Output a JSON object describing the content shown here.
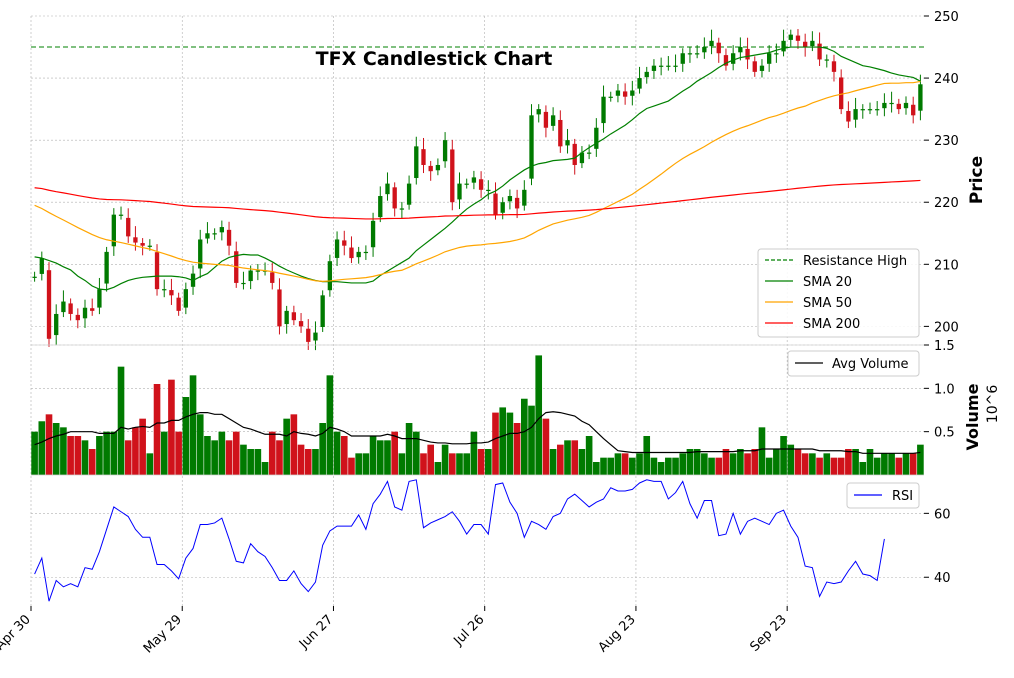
{
  "chart_data": {
    "type": "candlestick",
    "title": "TFX Candlestick Chart",
    "x_tick_labels": [
      "Apr 30",
      "May 29",
      "Jun 27",
      "Jul 26",
      "Aug 23",
      "Sep 23"
    ],
    "x_tick_indices": [
      0,
      21,
      42,
      63,
      84,
      105
    ],
    "panels": {
      "price": {
        "ylabel": "Price",
        "ylim": [
          197,
          250
        ],
        "yticks": [
          200,
          210,
          220,
          230,
          240,
          250
        ],
        "resistance_high": 245,
        "legend": [
          {
            "key": "resistance",
            "label": "Resistance High",
            "color": "#008000",
            "dash": true
          },
          {
            "key": "sma20",
            "label": "SMA 20",
            "color": "#008000"
          },
          {
            "key": "sma50",
            "label": "SMA 50",
            "color": "#ffa500"
          },
          {
            "key": "sma200",
            "label": "SMA 200",
            "color": "#ff0000"
          }
        ]
      },
      "volume": {
        "ylabel": "Volume",
        "scale_label": "10^6",
        "ylim": [
          0,
          1.5
        ],
        "yticks": [
          0.5,
          1.0,
          1.5
        ],
        "ytick_labels": [
          "0.5",
          "1.0",
          "1.5"
        ],
        "legend": [
          {
            "key": "avgvol",
            "label": "Avg Volume",
            "color": "#000000"
          }
        ]
      },
      "rsi": {
        "ylim": [
          31,
          72
        ],
        "yticks": [
          40,
          60
        ],
        "legend": [
          {
            "key": "rsi",
            "label": "RSI",
            "color": "#0000ff"
          }
        ]
      }
    },
    "colors": {
      "up": "#007a00",
      "down": "#d0121b",
      "grid": "#b0b0b0"
    },
    "close": [
      208.0,
      211.0,
      198.0,
      202.0,
      204.0,
      202.0,
      201.0,
      203.0,
      202.5,
      206.0,
      212.0,
      218.0,
      218.0,
      214.5,
      213.5,
      213.0,
      213.0,
      206.0,
      206.0,
      205.0,
      202.5,
      206.0,
      208.5,
      214.0,
      215.0,
      215.0,
      216.0,
      213.0,
      207.0,
      207.0,
      209.0,
      209.0,
      209.0,
      207.0,
      200.0,
      202.5,
      201.0,
      200.0,
      197.5,
      199.0,
      205.0,
      210.5,
      214.0,
      213.0,
      211.0,
      212.0,
      212.0,
      217.0,
      221.0,
      223.0,
      219.0,
      219.0,
      223.0,
      229.0,
      226.0,
      225.0,
      226.0,
      230.0,
      220.0,
      223.0,
      223.0,
      224.0,
      222.0,
      222.0,
      218.0,
      220.0,
      221.0,
      219.0,
      222.0,
      234.0,
      235.0,
      232.0,
      234.0,
      229.0,
      230.0,
      226.0,
      228.0,
      228.0,
      232.0,
      237.0,
      237.0,
      238.0,
      237.0,
      238.0,
      240.0,
      241.0,
      242.0,
      242.0,
      242.0,
      242.0,
      244.0,
      244.0,
      244.0,
      245.0,
      246.0,
      244.0,
      242.0,
      244.0,
      245.0,
      243.0,
      241.0,
      242.0,
      244.0,
      244.0,
      246.0,
      247.0,
      246.0,
      245.0,
      246.0,
      243.0,
      243.0,
      241.0,
      235.0,
      233.0,
      235.0,
      235.0,
      235.0,
      235.0,
      236.0,
      236.0,
      235.0,
      236.0,
      234.0,
      239.0
    ],
    "volume": [
      0.5,
      0.62,
      0.7,
      0.6,
      0.55,
      0.45,
      0.45,
      0.4,
      0.3,
      0.45,
      0.5,
      0.5,
      1.25,
      0.4,
      0.55,
      0.65,
      0.25,
      1.05,
      0.5,
      1.1,
      0.5,
      0.9,
      1.15,
      0.7,
      0.45,
      0.4,
      0.5,
      0.4,
      0.5,
      0.35,
      0.3,
      0.3,
      0.15,
      0.5,
      0.4,
      0.65,
      0.7,
      0.35,
      0.3,
      0.3,
      0.6,
      1.15,
      0.5,
      0.45,
      0.2,
      0.25,
      0.25,
      0.45,
      0.4,
      0.4,
      0.5,
      0.25,
      0.6,
      0.5,
      0.25,
      0.35,
      0.15,
      0.35,
      0.25,
      0.25,
      0.25,
      0.5,
      0.3,
      0.3,
      0.72,
      0.78,
      0.72,
      0.6,
      0.88,
      0.8,
      1.38,
      0.65,
      0.3,
      0.35,
      0.4,
      0.4,
      0.3,
      0.45,
      0.15,
      0.2,
      0.2,
      0.25,
      0.25,
      0.2,
      0.25,
      0.45,
      0.2,
      0.15,
      0.2,
      0.2,
      0.25,
      0.3,
      0.3,
      0.25,
      0.2,
      0.2,
      0.3,
      0.25,
      0.3,
      0.25,
      0.3,
      0.55,
      0.2,
      0.3,
      0.45,
      0.35,
      0.3,
      0.25,
      0.25,
      0.2,
      0.25,
      0.2,
      0.2,
      0.3,
      0.3,
      0.15,
      0.3,
      0.2,
      0.25,
      0.25,
      0.2,
      0.25,
      0.25,
      0.35
    ],
    "avg_volume": [
      0.35,
      0.38,
      0.42,
      0.45,
      0.47,
      0.5,
      0.5,
      0.5,
      0.5,
      0.48,
      0.48,
      0.48,
      0.55,
      0.53,
      0.55,
      0.56,
      0.55,
      0.6,
      0.6,
      0.63,
      0.63,
      0.67,
      0.7,
      0.72,
      0.72,
      0.7,
      0.7,
      0.65,
      0.6,
      0.55,
      0.53,
      0.5,
      0.47,
      0.47,
      0.47,
      0.45,
      0.5,
      0.48,
      0.47,
      0.45,
      0.48,
      0.55,
      0.53,
      0.5,
      0.45,
      0.45,
      0.45,
      0.45,
      0.45,
      0.47,
      0.45,
      0.42,
      0.42,
      0.42,
      0.4,
      0.38,
      0.37,
      0.37,
      0.36,
      0.36,
      0.36,
      0.37,
      0.37,
      0.38,
      0.42,
      0.45,
      0.48,
      0.48,
      0.5,
      0.55,
      0.65,
      0.72,
      0.73,
      0.72,
      0.7,
      0.68,
      0.62,
      0.58,
      0.5,
      0.42,
      0.35,
      0.28,
      0.27,
      0.26,
      0.26,
      0.26,
      0.26,
      0.26,
      0.26,
      0.26,
      0.26,
      0.26,
      0.27,
      0.27,
      0.27,
      0.27,
      0.27,
      0.27,
      0.28,
      0.28,
      0.28,
      0.3,
      0.3,
      0.3,
      0.3,
      0.3,
      0.3,
      0.3,
      0.3,
      0.28,
      0.28,
      0.28,
      0.28,
      0.27,
      0.27,
      0.25,
      0.25,
      0.25,
      0.25,
      0.25,
      0.25,
      0.25,
      0.25,
      0.26
    ],
    "rsi": [
      41.0,
      46.0,
      32.5,
      39.0,
      37.0,
      38.0,
      37.0,
      43.0,
      42.5,
      48.0,
      55.0,
      62.0,
      60.5,
      59.0,
      55.0,
      52.5,
      52.5,
      44.0,
      44.0,
      42.0,
      39.5,
      46.0,
      49.0,
      56.5,
      56.5,
      57.0,
      58.5,
      52.0,
      45.0,
      44.5,
      50.5,
      48.0,
      46.5,
      43.0,
      39.0,
      39.0,
      42.0,
      38.0,
      35.5,
      38.5,
      50.0,
      54.5,
      56.0,
      56.0,
      56.0,
      59.5,
      55.0,
      63.0,
      66.0,
      70.0,
      62.0,
      61.0,
      70.0,
      70.5,
      55.5,
      57.0,
      58.0,
      59.0,
      60.5,
      57.5,
      53.5,
      56.5,
      56.5,
      53.5,
      69.0,
      69.5,
      63.5,
      60.0,
      52.5,
      57.5,
      56.5,
      55.0,
      59.0,
      60.0,
      64.5,
      66.0,
      64.0,
      62.0,
      63.5,
      64.5,
      68.0,
      67.0,
      67.0,
      67.5,
      69.5,
      70.5,
      70.0,
      70.0,
      64.5,
      66.5,
      70.0,
      63.0,
      58.5,
      64.0,
      64.0,
      53.0,
      53.5,
      60.0,
      53.5,
      57.5,
      58.5,
      57.5,
      56.5,
      60.0,
      61.0,
      56.0,
      52.5,
      43.5,
      43.0,
      34.0,
      38.5,
      38.0,
      38.5,
      42.0,
      45.0,
      41.0,
      40.5,
      39.0,
      52.0
    ],
    "sma20": [
      211.2,
      211.0,
      210.6,
      210.2,
      209.6,
      209.1,
      208.1,
      207.4,
      206.5,
      206.0,
      205.9,
      206.3,
      206.9,
      207.4,
      207.7,
      207.9,
      208.0,
      208.1,
      208.1,
      208.1,
      208.0,
      207.8,
      207.4,
      208.0,
      208.5,
      209.5,
      210.5,
      211.1,
      211.4,
      211.6,
      211.5,
      211.5,
      211.0,
      210.4,
      209.7,
      209.1,
      208.6,
      208.1,
      207.7,
      207.4,
      207.2,
      207.2,
      207.2,
      207.1,
      207.0,
      207.0,
      207.0,
      207.3,
      208.2,
      208.9,
      209.6,
      210.3,
      211.0,
      212.2,
      213.1,
      214.0,
      214.9,
      215.8,
      216.8,
      217.9,
      218.9,
      219.7,
      220.4,
      221.3,
      221.8,
      222.6,
      223.6,
      224.4,
      225.2,
      225.8,
      226.2,
      226.4,
      226.7,
      226.8,
      226.9,
      227.1,
      228.0,
      228.8,
      229.5,
      230.2,
      231.0,
      231.7,
      232.4,
      233.3,
      234.3,
      235.1,
      235.5,
      235.9,
      236.3,
      237.1,
      237.9,
      238.6,
      239.5,
      240.2,
      240.9,
      241.7,
      242.4,
      242.9,
      243.3,
      243.5,
      243.7,
      243.9,
      244.1,
      244.5,
      244.8,
      245.0,
      245.0,
      245.0,
      245.0,
      245.0,
      244.8,
      244.3,
      243.5,
      243.0,
      242.5,
      242.0,
      241.8,
      241.5,
      241.2,
      240.8,
      240.5,
      240.3,
      240.1,
      239.5
    ]
  }
}
